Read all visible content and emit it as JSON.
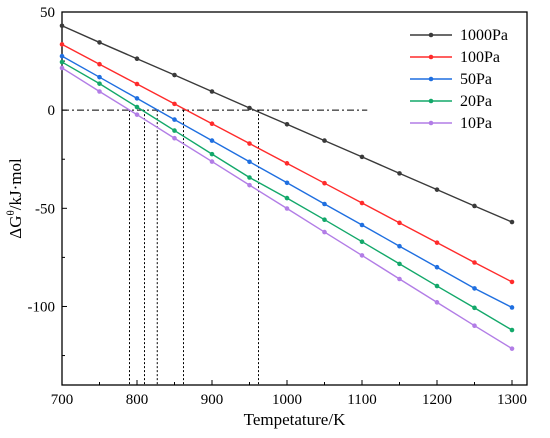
{
  "chart_data": {
    "type": "line",
    "xlabel": "Tempetature/K",
    "ylabel_prefix": "ΔG",
    "ylabel_sup": "θ",
    "ylabel_suffix": "/kJ·mol",
    "xlim": [
      700,
      1320
    ],
    "ylim": [
      -140,
      50
    ],
    "xticks": [
      700,
      800,
      900,
      1000,
      1100,
      1200,
      1300
    ],
    "yticks": [
      50,
      0,
      -50,
      -100
    ],
    "x": [
      700,
      750,
      800,
      850,
      900,
      950,
      1000,
      1050,
      1100,
      1150,
      1200,
      1250,
      1300
    ],
    "legend_position": "top-right",
    "series": [
      {
        "name": "1000Pa",
        "color": "#3a3a3a",
        "values": [
          43.0,
          34.5,
          26.2,
          17.9,
          9.5,
          1.1,
          -7.2,
          -15.5,
          -23.8,
          -32.2,
          -40.5,
          -48.8,
          -57.0
        ]
      },
      {
        "name": "100Pa",
        "color": "#ff2b2b",
        "values": [
          33.5,
          23.4,
          13.3,
          3.2,
          -6.9,
          -17.0,
          -27.1,
          -37.2,
          -47.3,
          -57.4,
          -67.5,
          -77.6,
          -87.5
        ]
      },
      {
        "name": "50Pa",
        "color": "#1f6fe0",
        "values": [
          27.5,
          16.8,
          6.0,
          -4.8,
          -15.5,
          -26.3,
          -37.0,
          -47.8,
          -58.5,
          -69.3,
          -80.0,
          -90.8,
          -100.5
        ]
      },
      {
        "name": "20Pa",
        "color": "#13a86a",
        "values": [
          24.5,
          13.5,
          1.6,
          -10.4,
          -22.4,
          -34.3,
          -44.8,
          -55.8,
          -67.0,
          -78.3,
          -89.6,
          -100.7,
          -112.0
        ]
      },
      {
        "name": "10Pa",
        "color": "#b27de6",
        "values": [
          21.5,
          9.5,
          -2.3,
          -14.3,
          -26.2,
          -38.2,
          -50.1,
          -62.1,
          -74.0,
          -86.0,
          -97.9,
          -109.8,
          -121.5
        ]
      }
    ],
    "reference_line_y": 0,
    "reference_line_xmax": 1107,
    "crossing_x": [
      790,
      810,
      827,
      862,
      962
    ]
  }
}
